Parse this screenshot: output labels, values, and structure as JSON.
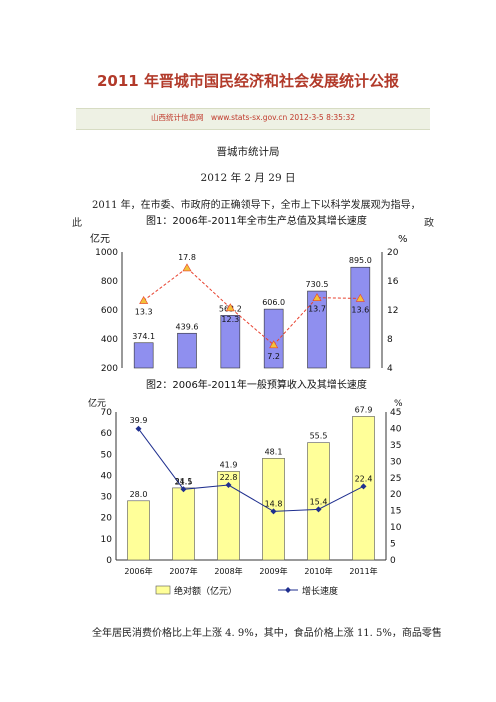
{
  "header": {
    "title": "2011 年晋城市国民经济和社会发展统计公报",
    "meta": "山西统计信息网　www.stats-sx.gov.cn 2012-3-5 8:35:32"
  },
  "byline": {
    "org": "晋城市统计局",
    "date": "2012 年 2 月 29 日"
  },
  "body": {
    "intro": "2011 年，在市委、市政府的正确领导下，全市上下以科学发展观为指导，",
    "bottom": "全年居民消费价格比上年上涨 4. 9%，其中，食品价格上涨 11. 5%，商品零售"
  },
  "chart_data": [
    {
      "type": "bar",
      "title": "图1：2006年-2011年全市生产总值及其增长速度",
      "ylabel": "亿元",
      "y2label": "%",
      "ylim": [
        200,
        1000
      ],
      "y2lim": [
        4,
        20
      ],
      "yticks": [
        "200",
        "400",
        "600",
        "800",
        "1000"
      ],
      "y2ticks": [
        "4",
        "8",
        "12",
        "16",
        "20"
      ],
      "series": [
        {
          "values": [
            374.1,
            439.6,
            563.2,
            606.0,
            730.5,
            895.0
          ],
          "labels": [
            "374.1",
            "439.6",
            "563.2",
            "606.0",
            "730.5",
            "895.0"
          ]
        },
        {
          "values": [
            13.3,
            17.8,
            12.3,
            7.2,
            13.7,
            13.6
          ],
          "labels": [
            "13.3",
            "17.8",
            "12.3",
            "7.2",
            "13.7",
            "13.6"
          ]
        }
      ],
      "colors": {
        "bar": "#8f8fef",
        "line": "#e8412f",
        "marker": "#f2c23a"
      }
    },
    {
      "type": "bar",
      "title": "图2：2006年-2011年一般预算收入及其增长速度",
      "ylabel": "亿元",
      "y2label": "%",
      "ylim": [
        0,
        70
      ],
      "y2lim": [
        0,
        45
      ],
      "categories": [
        "2006年",
        "2007年",
        "2008年",
        "2009年",
        "2010年",
        "2011年"
      ],
      "yticks": [
        "0",
        "10",
        "20",
        "30",
        "40",
        "50",
        "60",
        "70"
      ],
      "y2ticks": [
        "0",
        "5",
        "10",
        "15",
        "20",
        "25",
        "30",
        "35",
        "40",
        "45"
      ],
      "series": [
        {
          "name": "绝对额（亿元）",
          "values": [
            28.0,
            34.1,
            41.9,
            48.1,
            55.5,
            67.9
          ],
          "labels": [
            "28.0",
            "34.1",
            "41.9",
            "48.1",
            "55.5",
            "67.9"
          ]
        },
        {
          "name": "增长速度",
          "values": [
            39.9,
            21.5,
            22.8,
            14.8,
            15.4,
            22.4
          ],
          "labels": [
            "39.9",
            "21.5",
            "22.8",
            "14.8",
            "15.4",
            "22.4"
          ]
        }
      ],
      "colors": {
        "bar": "#ffff99",
        "bar_stroke": "#555555",
        "line": "#1f2f8f"
      }
    }
  ]
}
